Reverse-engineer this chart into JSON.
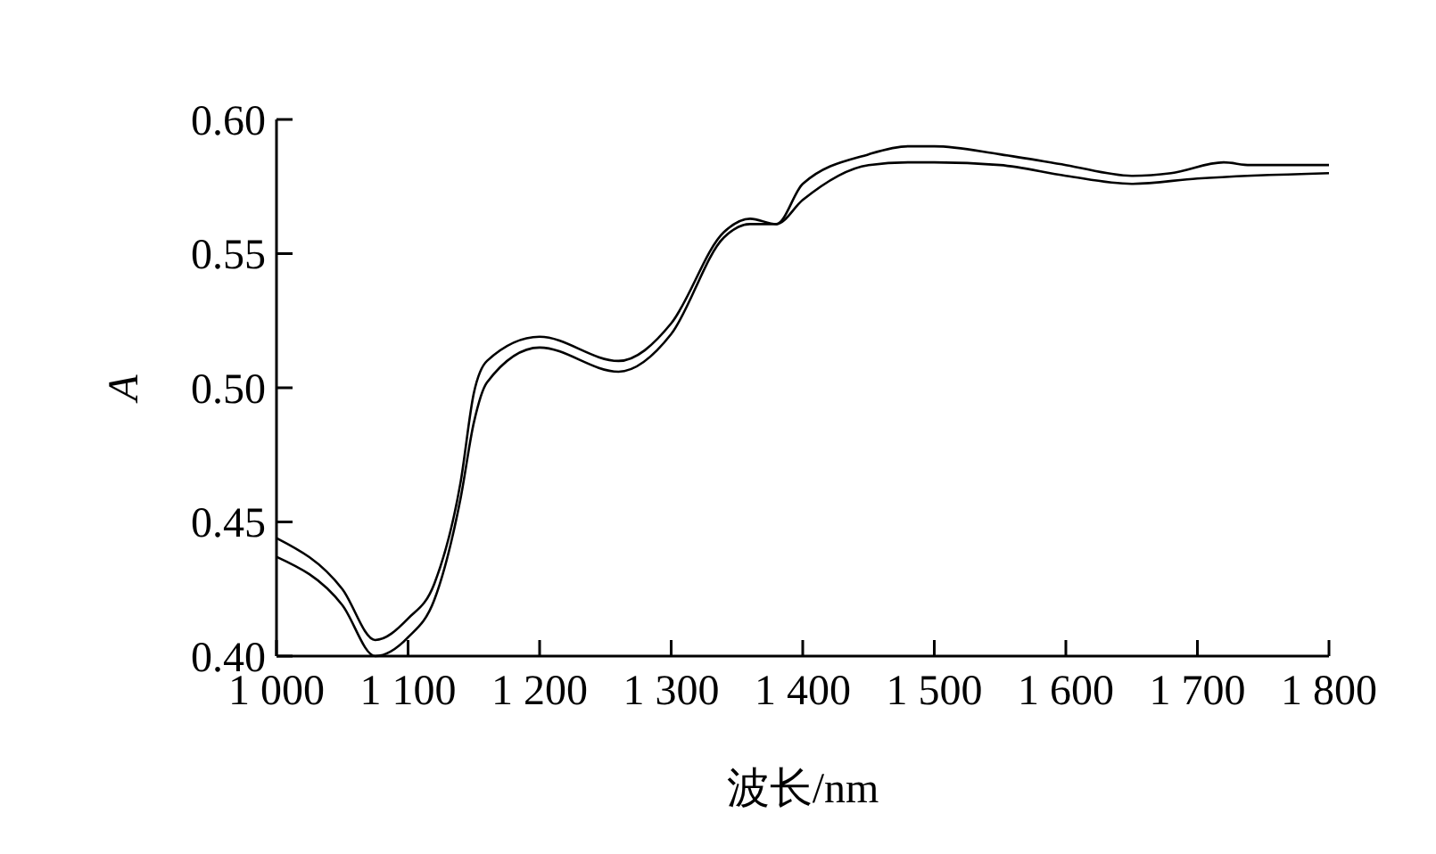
{
  "chart_data": {
    "type": "line",
    "xlabel": "波长/nm",
    "ylabel": "A",
    "xlim": [
      1000,
      1800
    ],
    "ylim": [
      0.4,
      0.6
    ],
    "xticks": [
      {
        "value": 1000,
        "label": "1 000"
      },
      {
        "value": 1100,
        "label": "1 100"
      },
      {
        "value": 1200,
        "label": "1 200"
      },
      {
        "value": 1300,
        "label": "1 300"
      },
      {
        "value": 1400,
        "label": "1 400"
      },
      {
        "value": 1500,
        "label": "1 500"
      },
      {
        "value": 1600,
        "label": "1 600"
      },
      {
        "value": 1700,
        "label": "1 700"
      },
      {
        "value": 1800,
        "label": "1 800"
      }
    ],
    "yticks": [
      {
        "value": 0.4,
        "label": "0.40"
      },
      {
        "value": 0.45,
        "label": "0.45"
      },
      {
        "value": 0.5,
        "label": "0.50"
      },
      {
        "value": 0.55,
        "label": "0.55"
      },
      {
        "value": 0.6,
        "label": "0.60"
      }
    ],
    "grid": false,
    "marker": "none",
    "line_style": "solid",
    "series": [
      {
        "color": "#000000",
        "x": [
          1000,
          1050,
          1075,
          1100,
          1120,
          1140,
          1150,
          1160,
          1200,
          1260,
          1300,
          1340,
          1360,
          1380,
          1400,
          1450,
          1480,
          1500,
          1550,
          1600,
          1650,
          1680,
          1720,
          1740,
          1760,
          1800
        ],
        "values": [
          0.444,
          0.425,
          0.406,
          0.414,
          0.427,
          0.465,
          0.498,
          0.51,
          0.519,
          0.51,
          0.524,
          0.558,
          0.563,
          0.561,
          0.576,
          0.587,
          0.59,
          0.59,
          0.587,
          0.583,
          0.579,
          0.58,
          0.584,
          0.583,
          0.583,
          0.583
        ]
      },
      {
        "color": "#000000",
        "x": [
          1000,
          1050,
          1075,
          1100,
          1120,
          1140,
          1150,
          1160,
          1200,
          1260,
          1300,
          1340,
          1360,
          1380,
          1400,
          1450,
          1480,
          1500,
          1550,
          1600,
          1650,
          1700,
          1800
        ],
        "values": [
          0.437,
          0.419,
          0.4,
          0.407,
          0.421,
          0.459,
          0.487,
          0.502,
          0.515,
          0.506,
          0.52,
          0.556,
          0.561,
          0.561,
          0.57,
          0.583,
          0.584,
          0.584,
          0.583,
          0.579,
          0.576,
          0.578,
          0.58
        ]
      }
    ]
  }
}
